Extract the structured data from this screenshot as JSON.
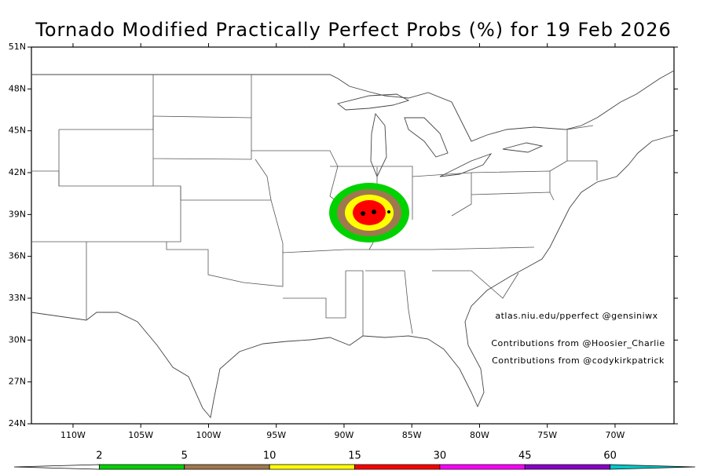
{
  "title": "Tornado Modified Practically Perfect Probs (%) for 19 Feb 2026",
  "map": {
    "xlim": [
      -113.07,
      -65.65
    ],
    "ylim": [
      24,
      51
    ],
    "yticks": [
      {
        "value": 51,
        "label": "51N"
      },
      {
        "value": 48,
        "label": "48N"
      },
      {
        "value": 45,
        "label": "45N"
      },
      {
        "value": 42,
        "label": "42N"
      },
      {
        "value": 39,
        "label": "39N"
      },
      {
        "value": 36,
        "label": "36N"
      },
      {
        "value": 33,
        "label": "33N"
      },
      {
        "value": 30,
        "label": "30N"
      },
      {
        "value": 27,
        "label": "27N"
      },
      {
        "value": 24,
        "label": "24N"
      }
    ],
    "xticks": [
      {
        "value": -110,
        "label": "110W"
      },
      {
        "value": -105,
        "label": "105W"
      },
      {
        "value": -100,
        "label": "100W"
      },
      {
        "value": -95,
        "label": "95W"
      },
      {
        "value": -90,
        "label": "90W"
      },
      {
        "value": -85,
        "label": "85W"
      },
      {
        "value": -80,
        "label": "80W"
      },
      {
        "value": -75,
        "label": "75W"
      },
      {
        "value": -70,
        "label": "70W"
      }
    ]
  },
  "credits": [
    "atlas.niu.edu/pperfect @gensiniwx",
    "Contributions from @Hoosier_Charlie",
    "Contributions from @codykirkpatrick"
  ],
  "colorbar": {
    "levels": [
      2,
      5,
      10,
      15,
      30,
      45,
      60
    ],
    "colors": [
      "#ffffff",
      "#00d200",
      "#a0784f",
      "#ffff00",
      "#ff0000",
      "#ff00ff",
      "#8a00c8",
      "#00c8c8"
    ]
  }
}
